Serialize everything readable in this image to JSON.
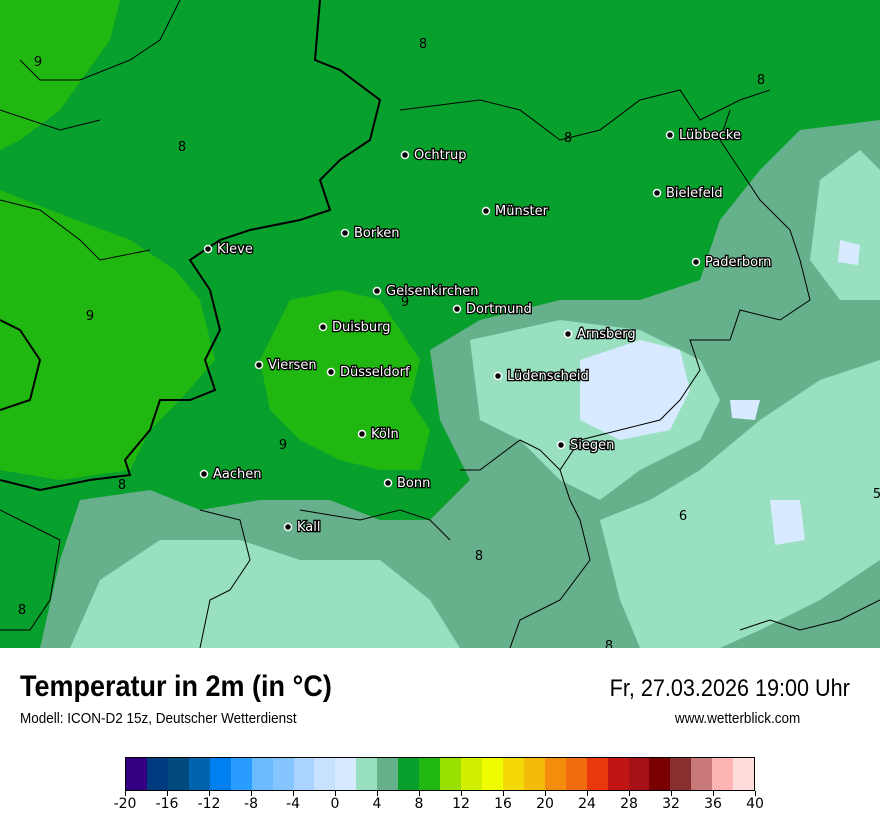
{
  "title": "Temperatur in 2m (in °C)",
  "subtitle": "Modell: ICON-D2 15z, Deutscher Wetterdienst",
  "datetime": "Fr, 27.03.2026 19:00 Uhr",
  "website": "www.wetterblick.com",
  "legend": {
    "ticks": [
      "-20",
      "-16",
      "-12",
      "-8",
      "-4",
      "0",
      "4",
      "8",
      "12",
      "16",
      "20",
      "24",
      "28",
      "32",
      "36",
      "40"
    ],
    "colors": [
      "#320080",
      "#003b80",
      "#004a80",
      "#0063b0",
      "#0080f0",
      "#2a9cff",
      "#6abcff",
      "#84c4ff",
      "#a8d4ff",
      "#c6e2ff",
      "#d8eaff",
      "#98e0c0",
      "#66b08c",
      "#08a02c",
      "#20b810",
      "#98e000",
      "#d0f000",
      "#f0fc00",
      "#f4d808",
      "#f4bc08",
      "#f48c0c",
      "#f06c0c",
      "#e8380c",
      "#c01414",
      "#a81018",
      "#780000",
      "#883030",
      "#c87878",
      "#ffb4b4",
      "#ffdcdc"
    ]
  },
  "cities": [
    {
      "name": "Lübbecke"
    },
    {
      "name": "Ochtrup"
    },
    {
      "name": "Bielefeld"
    },
    {
      "name": "Münster"
    },
    {
      "name": "Borken"
    },
    {
      "name": "Kleve"
    },
    {
      "name": "Paderborn"
    },
    {
      "name": "Gelsenkirchen"
    },
    {
      "name": "Dortmund"
    },
    {
      "name": "Duisburg"
    },
    {
      "name": "Arnsberg"
    },
    {
      "name": "Viersen"
    },
    {
      "name": "Düsseldorf"
    },
    {
      "name": "Lüdenscheid"
    },
    {
      "name": "Köln"
    },
    {
      "name": "Siegen"
    },
    {
      "name": "Aachen"
    },
    {
      "name": "Bonn"
    },
    {
      "name": "Kall"
    }
  ],
  "contour_labels": [
    "8",
    "9",
    "8",
    "8",
    "8",
    "9",
    "9",
    "9",
    "8",
    "6",
    "8",
    "8",
    "8",
    "5"
  ]
}
